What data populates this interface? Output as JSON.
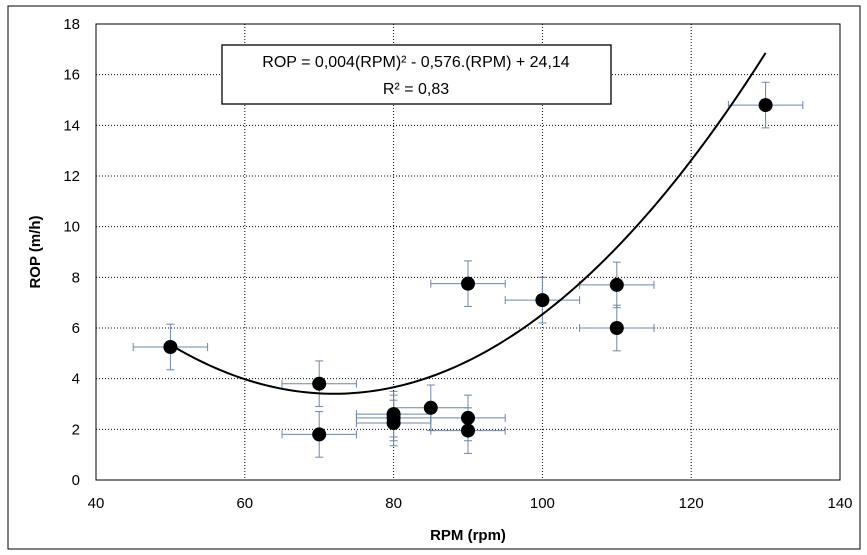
{
  "chart_data": {
    "type": "scatter",
    "xlabel": "RPM (rpm)",
    "ylabel": "ROP (m/h)",
    "xlim": [
      40,
      140
    ],
    "ylim": [
      0,
      18
    ],
    "x_ticks": [
      40,
      60,
      80,
      100,
      120,
      140
    ],
    "y_ticks": [
      0,
      2,
      4,
      6,
      8,
      10,
      12,
      14,
      16,
      18
    ],
    "x_tick_labels": [
      "40",
      "60",
      "80",
      "100",
      "120",
      "140"
    ],
    "y_tick_labels": [
      "0",
      "2",
      "4",
      "6",
      "8",
      "10",
      "12",
      "14",
      "16",
      "18"
    ],
    "grid": true,
    "grid_style": "dotted",
    "marker_color": "#000000",
    "errorbar_color": "#6d87a8",
    "points": [
      {
        "x": 50,
        "y": 5.25,
        "xerr": 5,
        "yerr": 0.9
      },
      {
        "x": 70,
        "y": 3.8,
        "xerr": 5,
        "yerr": 0.9
      },
      {
        "x": 70,
        "y": 1.8,
        "xerr": 5,
        "yerr": 0.9
      },
      {
        "x": 80,
        "y": 2.6,
        "xerr": 5,
        "yerr": 0.9
      },
      {
        "x": 80,
        "y": 2.45,
        "xerr": 5,
        "yerr": 0.9
      },
      {
        "x": 80,
        "y": 2.25,
        "xerr": 5,
        "yerr": 0.9
      },
      {
        "x": 85,
        "y": 2.85,
        "xerr": 5,
        "yerr": 0.9
      },
      {
        "x": 90,
        "y": 7.75,
        "xerr": 5,
        "yerr": 0.9
      },
      {
        "x": 90,
        "y": 2.45,
        "xerr": 5,
        "yerr": 0.9
      },
      {
        "x": 90,
        "y": 1.95,
        "xerr": 5,
        "yerr": 0.9
      },
      {
        "x": 100,
        "y": 7.1,
        "xerr": 5,
        "yerr": 0.9
      },
      {
        "x": 110,
        "y": 7.7,
        "xerr": 5,
        "yerr": 0.9
      },
      {
        "x": 110,
        "y": 6.0,
        "xerr": 5,
        "yerr": 0.9
      },
      {
        "x": 130,
        "y": 14.8,
        "xerr": 5,
        "yerr": 0.9
      }
    ],
    "trendline": {
      "type": "polynomial",
      "coefficients": [
        0.004,
        -0.576,
        24.14
      ],
      "x_range": [
        50,
        130
      ]
    },
    "annotation": {
      "equation": "ROP = 0,004(RPM)² - 0,576.(RPM) + 24,14",
      "r_squared": "R² = 0,83"
    }
  }
}
